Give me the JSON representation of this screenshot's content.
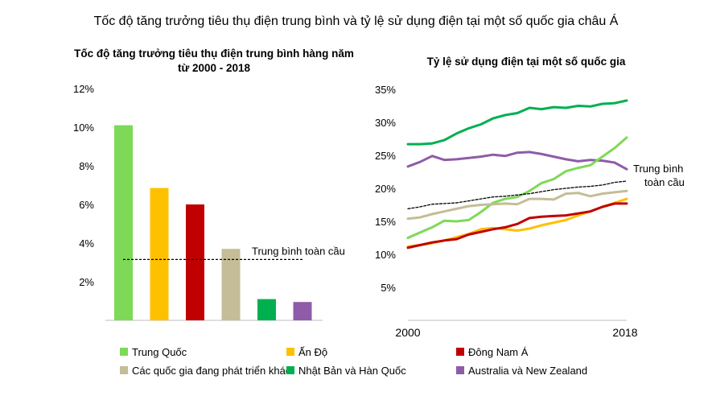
{
  "title": "Tốc độ tăng trưởng tiêu thụ điện trung bình và tỷ lệ sử dụng điện tại một số quốc gia châu Á",
  "colors": {
    "china": "#7ed957",
    "india": "#ffc000",
    "sea": "#c00000",
    "developing": "#c4bd97",
    "japan_korea": "#00b050",
    "aus_nz": "#8e5ca8",
    "global": "#000000"
  },
  "legend": [
    {
      "key": "china",
      "label": "Trung Quốc"
    },
    {
      "key": "india",
      "label": "Ấn Độ"
    },
    {
      "key": "sea",
      "label": "Đông Nam Á"
    },
    {
      "key": "developing",
      "label": "Các quốc gia đang phát triển khác"
    },
    {
      "key": "japan_korea",
      "label": "Nhật Bản và Hàn Quốc"
    },
    {
      "key": "aus_nz",
      "label": "Australia và New Zealand"
    }
  ],
  "chart_data": [
    {
      "type": "bar",
      "title_line1": "Tốc độ tăng trưởng tiêu thụ điện trung bình hàng năm",
      "title_line2": "từ 2000 - 2018",
      "categories": [
        "Trung Quốc",
        "Ấn Độ",
        "Đông Nam Á",
        "Các quốc gia đang phát triển khác",
        "Nhật Bản và Hàn Quốc",
        "Australia và New Zealand"
      ],
      "keys": [
        "china",
        "india",
        "sea",
        "developing",
        "japan_korea",
        "aus_nz"
      ],
      "values": [
        10.1,
        6.85,
        6.0,
        3.7,
        1.1,
        0.95
      ],
      "ylim": [
        0,
        12
      ],
      "yticks": [
        "2%",
        "4%",
        "6%",
        "8%",
        "10%",
        "12%"
      ],
      "ytick_values": [
        2,
        4,
        6,
        8,
        10,
        12
      ],
      "reference_line": {
        "label": "Trung bình toàn cầu",
        "value": 3.15
      },
      "grid": false
    },
    {
      "type": "line",
      "title": "Tỷ lệ sử dụng điện tại một số quốc gia",
      "x": [
        2000,
        2001,
        2002,
        2003,
        2004,
        2005,
        2006,
        2007,
        2008,
        2009,
        2010,
        2011,
        2012,
        2013,
        2014,
        2015,
        2016,
        2017,
        2018
      ],
      "xticks": [
        "2000",
        "2018"
      ],
      "ylim": [
        0,
        35
      ],
      "yticks": [
        "5%",
        "10%",
        "15%",
        "20%",
        "25%",
        "30%",
        "35%"
      ],
      "ytick_values": [
        5,
        10,
        15,
        20,
        25,
        30,
        35
      ],
      "series": [
        {
          "key": "japan_korea",
          "values": [
            26.7,
            26.7,
            26.8,
            27.3,
            28.3,
            29.1,
            29.7,
            30.6,
            31.1,
            31.4,
            32.2,
            32.0,
            32.3,
            32.2,
            32.5,
            32.4,
            32.8,
            32.9,
            33.3
          ]
        },
        {
          "key": "aus_nz",
          "values": [
            23.3,
            24.0,
            24.9,
            24.3,
            24.4,
            24.6,
            24.8,
            25.1,
            24.9,
            25.4,
            25.5,
            25.2,
            24.8,
            24.4,
            24.1,
            24.3,
            24.2,
            23.9,
            22.9
          ]
        },
        {
          "key": "china",
          "values": [
            12.5,
            13.3,
            14.1,
            15.1,
            15.0,
            15.2,
            16.4,
            17.8,
            18.4,
            18.7,
            19.6,
            20.8,
            21.4,
            22.6,
            23.1,
            23.5,
            24.8,
            26.1,
            27.7
          ]
        },
        {
          "key": "global",
          "dashed": true,
          "name": "Trung bình toàn cầu",
          "values": [
            16.9,
            17.2,
            17.6,
            17.7,
            17.8,
            18.1,
            18.4,
            18.7,
            18.8,
            19.0,
            19.2,
            19.5,
            19.8,
            20.0,
            20.2,
            20.3,
            20.5,
            20.9,
            21.1
          ]
        },
        {
          "key": "developing",
          "values": [
            15.4,
            15.6,
            16.1,
            16.5,
            16.9,
            17.3,
            17.5,
            17.6,
            17.7,
            17.6,
            18.4,
            18.4,
            18.3,
            19.2,
            19.3,
            18.8,
            19.2,
            19.4,
            19.6
          ]
        },
        {
          "key": "india",
          "values": [
            11.2,
            11.4,
            11.7,
            12.1,
            12.6,
            13.1,
            13.8,
            14.0,
            13.8,
            13.6,
            13.9,
            14.4,
            14.8,
            15.2,
            15.9,
            16.5,
            17.2,
            17.8,
            18.4
          ]
        },
        {
          "key": "sea",
          "values": [
            11.0,
            11.4,
            11.8,
            12.1,
            12.3,
            13.0,
            13.4,
            13.8,
            14.1,
            14.6,
            15.5,
            15.7,
            15.8,
            15.9,
            16.2,
            16.5,
            17.2,
            17.7,
            17.7
          ]
        }
      ],
      "annotation": {
        "line1": "Trung bình",
        "line2": "toàn cầu"
      },
      "grid": false
    }
  ]
}
